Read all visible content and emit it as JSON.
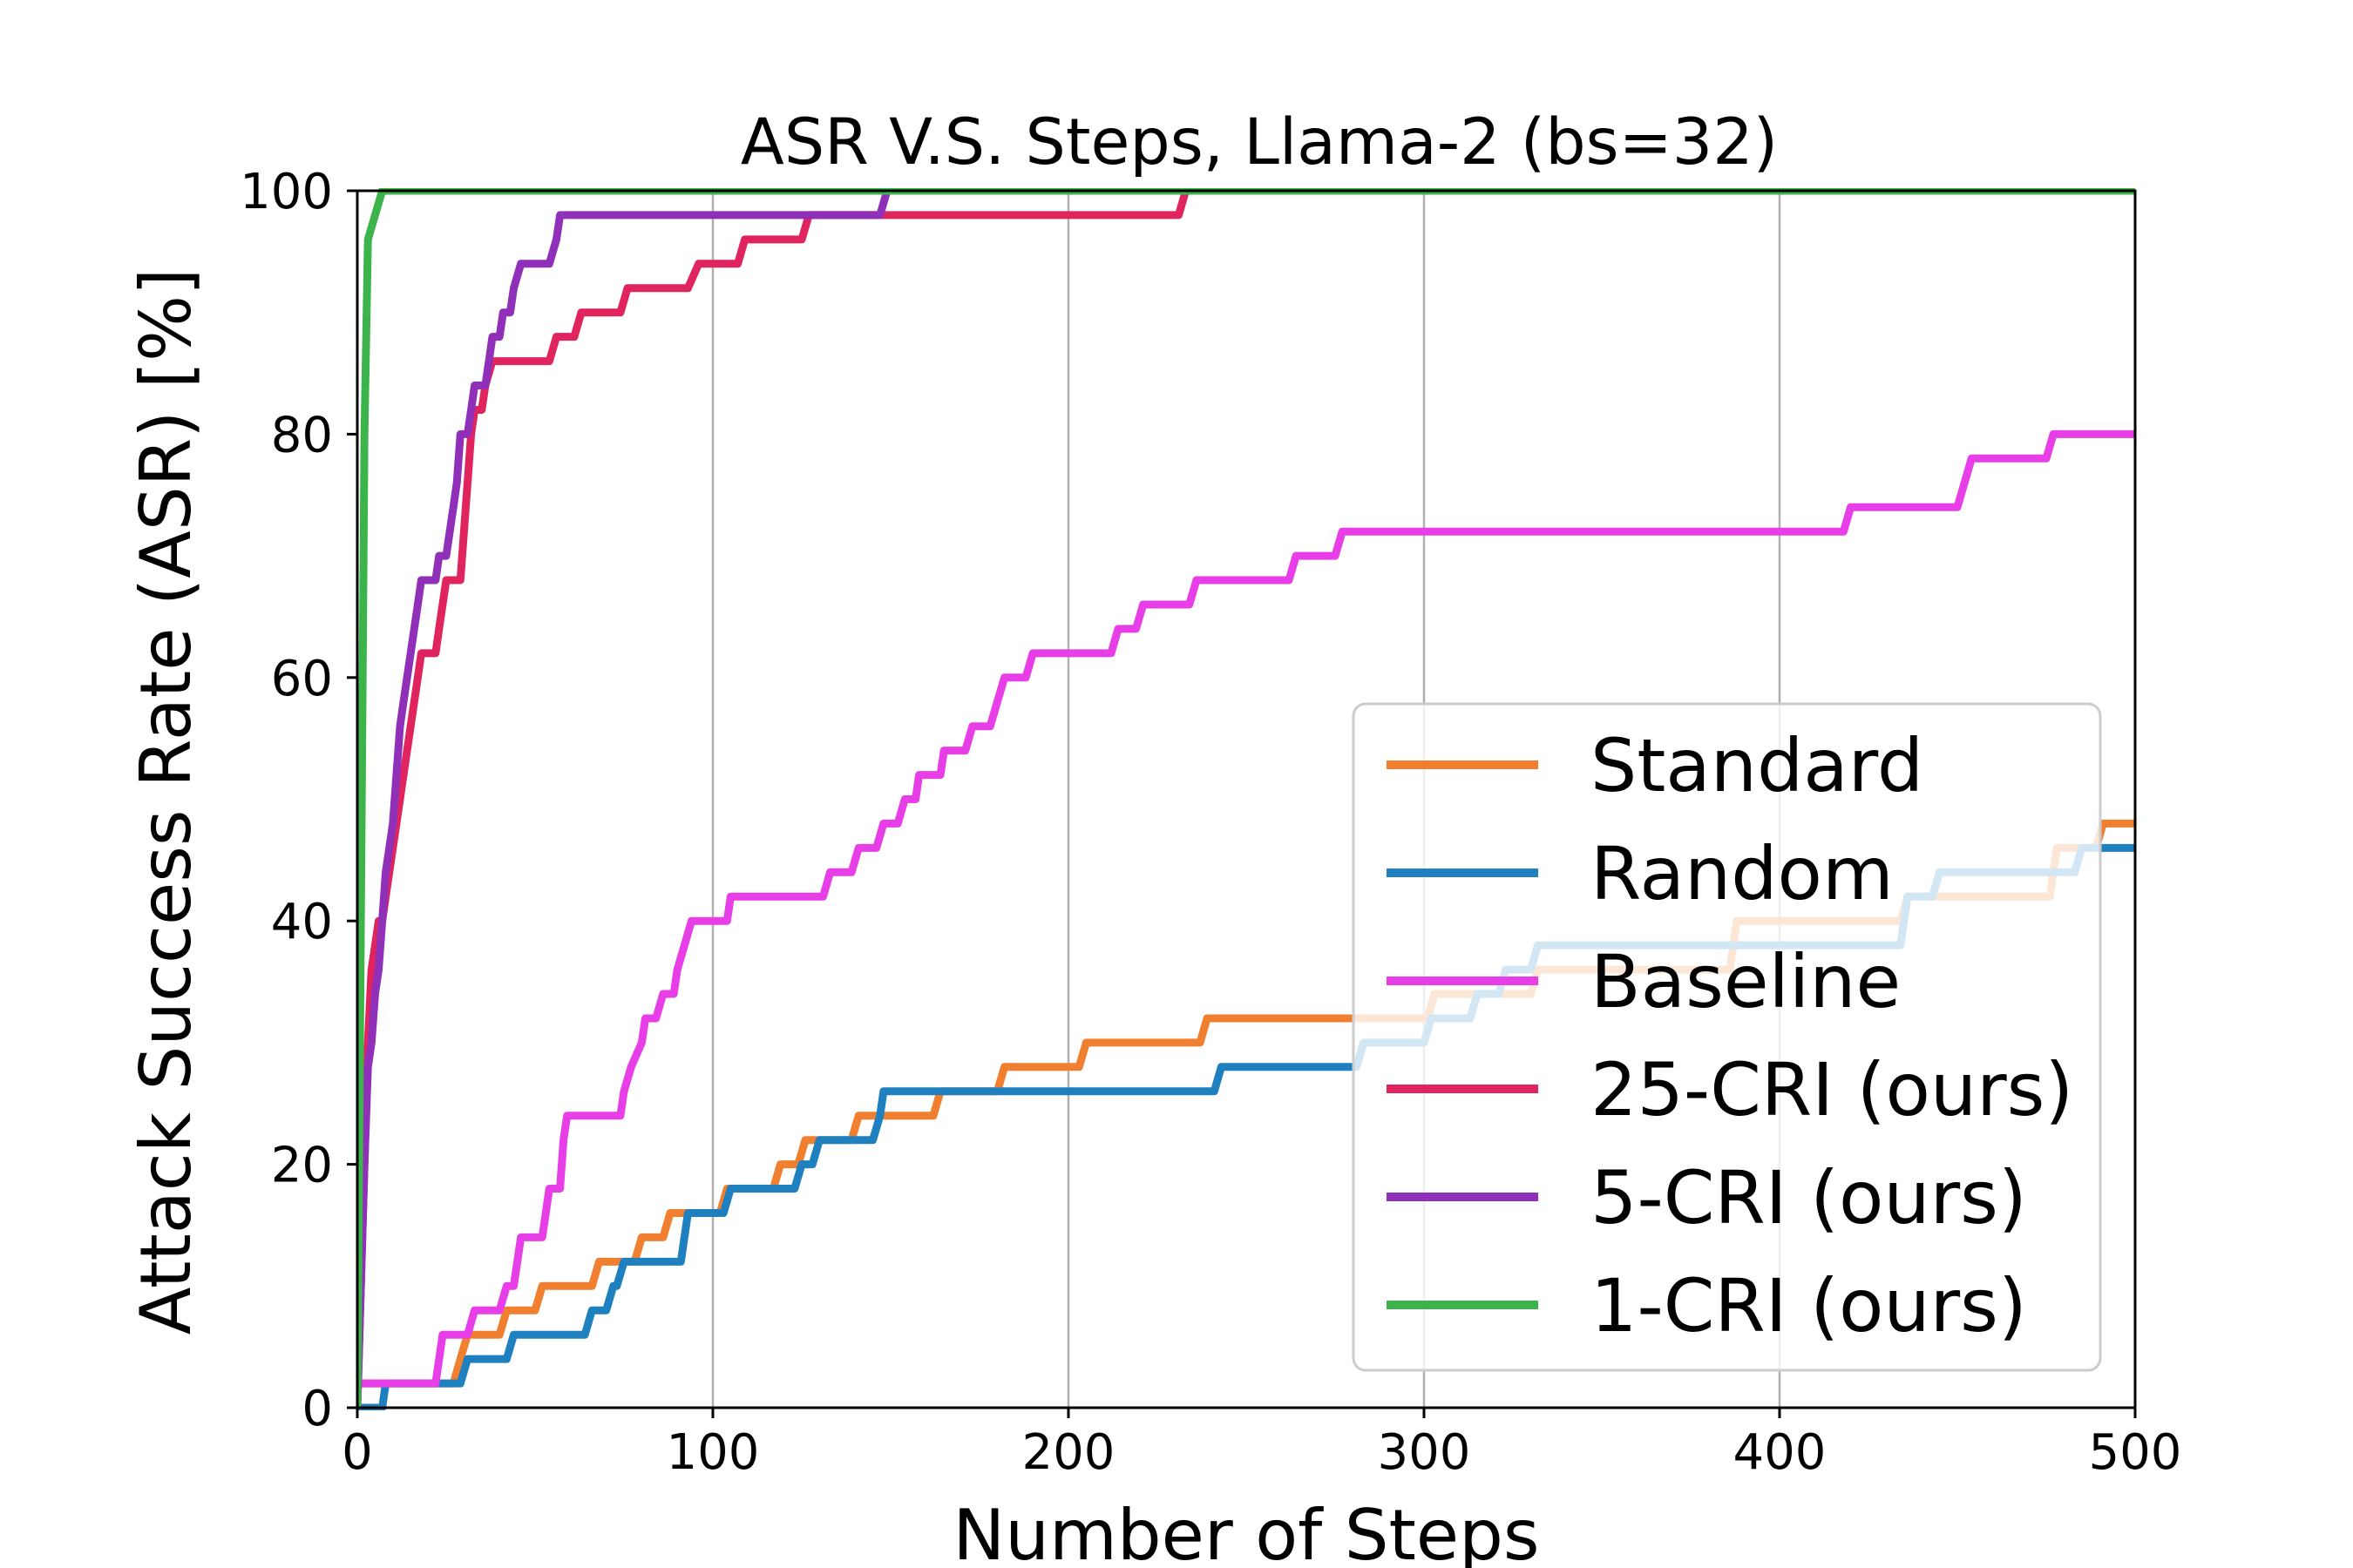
{
  "chart_data": {
    "type": "line",
    "title": "ASR V.S. Steps, Llama-2 (bs=32)",
    "xlabel": "Number of Steps",
    "ylabel": "Attack Success Rate (ASR) [%]",
    "xlim": [
      0,
      500
    ],
    "ylim": [
      0,
      100
    ],
    "xticks": [
      0,
      100,
      200,
      300,
      400,
      500
    ],
    "yticks": [
      0,
      20,
      40,
      60,
      80,
      100
    ],
    "grid": "vertical",
    "legend_position": "bottom-right",
    "series": [
      {
        "name": "Standard",
        "color": "#f08030",
        "points": [
          [
            0,
            2
          ],
          [
            27,
            2
          ],
          [
            29,
            4
          ],
          [
            31,
            6
          ],
          [
            40,
            6
          ],
          [
            42,
            8
          ],
          [
            50,
            8
          ],
          [
            52,
            10
          ],
          [
            66,
            10
          ],
          [
            68,
            12
          ],
          [
            78,
            12
          ],
          [
            80,
            14
          ],
          [
            86,
            14
          ],
          [
            88,
            16
          ],
          [
            102,
            16
          ],
          [
            104,
            18
          ],
          [
            117,
            18
          ],
          [
            119,
            20
          ],
          [
            124,
            20
          ],
          [
            126,
            22
          ],
          [
            139,
            22
          ],
          [
            141,
            24
          ],
          [
            162,
            24
          ],
          [
            164,
            26
          ],
          [
            180,
            26
          ],
          [
            182,
            28
          ],
          [
            203,
            28
          ],
          [
            205,
            30
          ],
          [
            237,
            30
          ],
          [
            239,
            32
          ],
          [
            301,
            32
          ],
          [
            303,
            34
          ],
          [
            330,
            34
          ],
          [
            332,
            36
          ],
          [
            386,
            36
          ],
          [
            388,
            40
          ],
          [
            434,
            40
          ],
          [
            436,
            42
          ],
          [
            476,
            42
          ],
          [
            478,
            46
          ],
          [
            489,
            46
          ],
          [
            491,
            48
          ],
          [
            500,
            48
          ]
        ]
      },
      {
        "name": "Random",
        "color": "#1f80c0",
        "points": [
          [
            0,
            0
          ],
          [
            7,
            0
          ],
          [
            8,
            2
          ],
          [
            29,
            2
          ],
          [
            31,
            4
          ],
          [
            42,
            4
          ],
          [
            44,
            6
          ],
          [
            64,
            6
          ],
          [
            66,
            8
          ],
          [
            70,
            8
          ],
          [
            72,
            10
          ],
          [
            73,
            10
          ],
          [
            75,
            12
          ],
          [
            91,
            12
          ],
          [
            93,
            16
          ],
          [
            103,
            16
          ],
          [
            105,
            18
          ],
          [
            123,
            18
          ],
          [
            125,
            20
          ],
          [
            128,
            20
          ],
          [
            130,
            22
          ],
          [
            145,
            22
          ],
          [
            147,
            24
          ],
          [
            148,
            26
          ],
          [
            241,
            26
          ],
          [
            243,
            28
          ],
          [
            281,
            28
          ],
          [
            283,
            30
          ],
          [
            300,
            30
          ],
          [
            302,
            32
          ],
          [
            313,
            32
          ],
          [
            315,
            34
          ],
          [
            321,
            34
          ],
          [
            323,
            36
          ],
          [
            330,
            36
          ],
          [
            332,
            38
          ],
          [
            434,
            38
          ],
          [
            436,
            42
          ],
          [
            443,
            42
          ],
          [
            445,
            44
          ],
          [
            483,
            44
          ],
          [
            485,
            46
          ],
          [
            500,
            46
          ]
        ]
      },
      {
        "name": "Baseline",
        "color": "#e83ee8",
        "points": [
          [
            0,
            2
          ],
          [
            22,
            2
          ],
          [
            24,
            6
          ],
          [
            31,
            6
          ],
          [
            33,
            8
          ],
          [
            40,
            8
          ],
          [
            42,
            10
          ],
          [
            44,
            10
          ],
          [
            46,
            14
          ],
          [
            52,
            14
          ],
          [
            54,
            18
          ],
          [
            57,
            18
          ],
          [
            58,
            22
          ],
          [
            59,
            24
          ],
          [
            74,
            24
          ],
          [
            75,
            26
          ],
          [
            77,
            28
          ],
          [
            80,
            30
          ],
          [
            81,
            32
          ],
          [
            84,
            32
          ],
          [
            86,
            34
          ],
          [
            89,
            34
          ],
          [
            90,
            36
          ],
          [
            92,
            38
          ],
          [
            94,
            40
          ],
          [
            104,
            40
          ],
          [
            105,
            42
          ],
          [
            131,
            42
          ],
          [
            133,
            44
          ],
          [
            139,
            44
          ],
          [
            141,
            46
          ],
          [
            146,
            46
          ],
          [
            148,
            48
          ],
          [
            152,
            48
          ],
          [
            154,
            50
          ],
          [
            157,
            50
          ],
          [
            158,
            52
          ],
          [
            164,
            52
          ],
          [
            165,
            54
          ],
          [
            171,
            54
          ],
          [
            173,
            56
          ],
          [
            178,
            56
          ],
          [
            180,
            58
          ],
          [
            182,
            60
          ],
          [
            188,
            60
          ],
          [
            190,
            62
          ],
          [
            212,
            62
          ],
          [
            214,
            64
          ],
          [
            219,
            64
          ],
          [
            221,
            66
          ],
          [
            234,
            66
          ],
          [
            236,
            68
          ],
          [
            250,
            68
          ],
          [
            262,
            68
          ],
          [
            264,
            70
          ],
          [
            275,
            70
          ],
          [
            277,
            72
          ],
          [
            418,
            72
          ],
          [
            420,
            74
          ],
          [
            450,
            74
          ],
          [
            452,
            76
          ],
          [
            454,
            78
          ],
          [
            475,
            78
          ],
          [
            477,
            80
          ],
          [
            500,
            80
          ]
        ]
      },
      {
        "name": "25-CRI (ours)",
        "color": "#e0245e",
        "points": [
          [
            0,
            0
          ],
          [
            2,
            20
          ],
          [
            3,
            30
          ],
          [
            4,
            36
          ],
          [
            5,
            38
          ],
          [
            6,
            40
          ],
          [
            7,
            40
          ],
          [
            8,
            42
          ],
          [
            9,
            44
          ],
          [
            10,
            46
          ],
          [
            11,
            48
          ],
          [
            12,
            50
          ],
          [
            13,
            52
          ],
          [
            14,
            54
          ],
          [
            15,
            56
          ],
          [
            16,
            58
          ],
          [
            17,
            60
          ],
          [
            18,
            62
          ],
          [
            22,
            62
          ],
          [
            23,
            64
          ],
          [
            24,
            66
          ],
          [
            25,
            68
          ],
          [
            29,
            68
          ],
          [
            30,
            72
          ],
          [
            31,
            76
          ],
          [
            32,
            80
          ],
          [
            33,
            82
          ],
          [
            35,
            82
          ],
          [
            36,
            84
          ],
          [
            38,
            86
          ],
          [
            54,
            86
          ],
          [
            56,
            88
          ],
          [
            61,
            88
          ],
          [
            63,
            90
          ],
          [
            74,
            90
          ],
          [
            76,
            92
          ],
          [
            93,
            92
          ],
          [
            96,
            94
          ],
          [
            107,
            94
          ],
          [
            109,
            96
          ],
          [
            125,
            96
          ],
          [
            127,
            98
          ],
          [
            231,
            98
          ],
          [
            233,
            100
          ],
          [
            500,
            100
          ]
        ]
      },
      {
        "name": "5-CRI (ours)",
        "color": "#9030b8",
        "points": [
          [
            0,
            0
          ],
          [
            2,
            20
          ],
          [
            3,
            28
          ],
          [
            4,
            30
          ],
          [
            5,
            34
          ],
          [
            6,
            36
          ],
          [
            7,
            40
          ],
          [
            8,
            44
          ],
          [
            9,
            46
          ],
          [
            10,
            48
          ],
          [
            11,
            52
          ],
          [
            12,
            56
          ],
          [
            13,
            58
          ],
          [
            14,
            60
          ],
          [
            15,
            62
          ],
          [
            16,
            64
          ],
          [
            17,
            66
          ],
          [
            18,
            68
          ],
          [
            22,
            68
          ],
          [
            23,
            70
          ],
          [
            25,
            70
          ],
          [
            26,
            72
          ],
          [
            27,
            74
          ],
          [
            28,
            76
          ],
          [
            29,
            80
          ],
          [
            31,
            80
          ],
          [
            32,
            82
          ],
          [
            33,
            84
          ],
          [
            36,
            84
          ],
          [
            37,
            86
          ],
          [
            38,
            88
          ],
          [
            40,
            88
          ],
          [
            41,
            90
          ],
          [
            43,
            90
          ],
          [
            44,
            92
          ],
          [
            46,
            94
          ],
          [
            54,
            94
          ],
          [
            56,
            96
          ],
          [
            57,
            98
          ],
          [
            147,
            98
          ],
          [
            149,
            100
          ],
          [
            500,
            100
          ]
        ]
      },
      {
        "name": "1-CRI (ours)",
        "color": "#3cb44b",
        "points": [
          [
            0,
            0
          ],
          [
            1,
            40
          ],
          [
            2,
            80
          ],
          [
            3,
            96
          ],
          [
            4,
            97
          ],
          [
            5,
            98
          ],
          [
            6,
            99
          ],
          [
            7,
            100
          ],
          [
            500,
            100
          ]
        ]
      }
    ]
  }
}
